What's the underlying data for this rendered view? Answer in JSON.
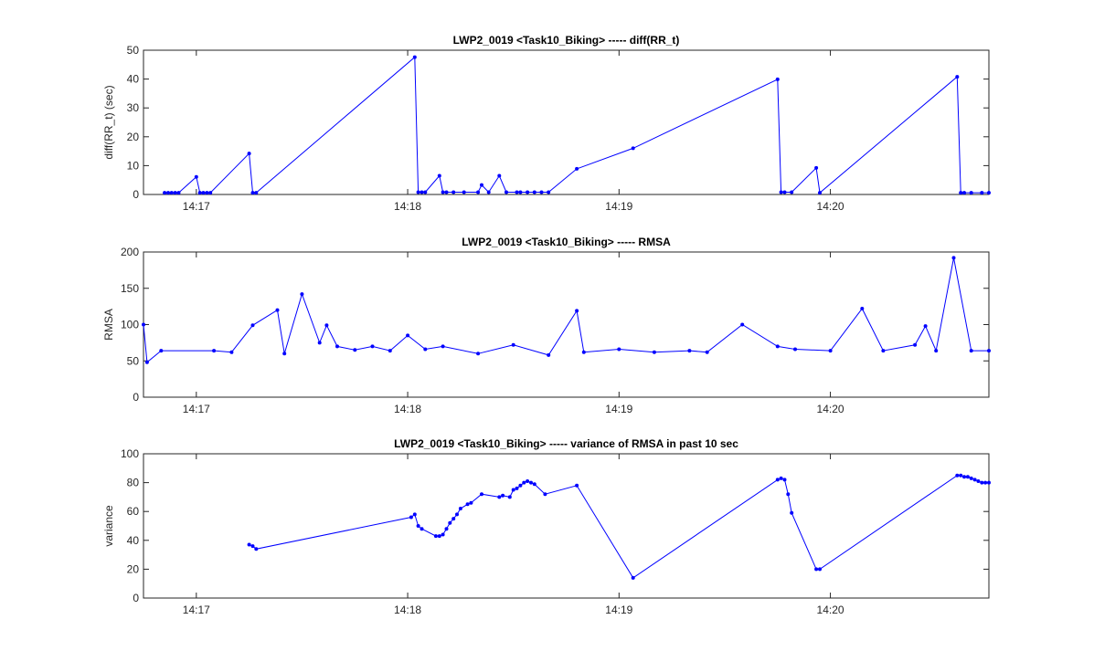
{
  "figure": {
    "background": "#ffffff"
  },
  "chart_data": [
    {
      "type": "line",
      "title": "LWP2_0019 <Task10_Biking> ----- diff(RR_t)",
      "xlabel": "",
      "ylabel": "diff(RR_t) (sec)",
      "x_unit": "time (hh:mm)",
      "xlim": [
        "14:16:45",
        "14:20:45"
      ],
      "ylim": [
        0,
        50
      ],
      "xticks": [
        "14:17",
        "14:18",
        "14:19",
        "14:20"
      ],
      "yticks": [
        0,
        10,
        20,
        30,
        40,
        50
      ],
      "grid": false,
      "line_color": "#0000ff",
      "series": [
        {
          "x": [
            "14:16:51",
            "14:16:52",
            "14:16:53",
            "14:16:54",
            "14:16:55",
            "14:17:00",
            "14:17:01",
            "14:17:02",
            "14:17:03",
            "14:17:04",
            "14:17:15",
            "14:17:16",
            "14:17:17",
            "14:18:02",
            "14:18:03",
            "14:18:04",
            "14:18:05",
            "14:18:09",
            "14:18:10",
            "14:18:11",
            "14:18:13",
            "14:18:16",
            "14:18:20",
            "14:18:21",
            "14:18:23",
            "14:18:26",
            "14:18:28",
            "14:18:31",
            "14:18:32",
            "14:18:34",
            "14:18:36",
            "14:18:38",
            "14:18:40",
            "14:18:48",
            "14:19:04",
            "14:19:45",
            "14:19:46",
            "14:19:47",
            "14:19:49",
            "14:19:56",
            "14:19:57",
            "14:20:36",
            "14:20:37",
            "14:20:38",
            "14:20:40",
            "14:20:43",
            "14:20:45"
          ],
          "y": [
            0.6,
            0.6,
            0.6,
            0.6,
            0.6,
            6.1,
            0.6,
            0.6,
            0.6,
            0.6,
            14.2,
            0.6,
            0.6,
            47.6,
            0.8,
            0.8,
            0.8,
            6.5,
            0.8,
            0.8,
            0.8,
            0.8,
            0.8,
            3.3,
            0.8,
            6.5,
            0.8,
            0.8,
            0.8,
            0.8,
            0.8,
            0.8,
            0.8,
            8.9,
            16.0,
            39.9,
            0.8,
            0.8,
            0.8,
            9.2,
            0.6,
            40.8,
            0.6,
            0.6,
            0.6,
            0.6,
            0.6
          ]
        }
      ]
    },
    {
      "type": "line",
      "title": "LWP2_0019 <Task10_Biking> ----- RMSA",
      "xlabel": "",
      "ylabel": "RMSA",
      "x_unit": "time (hh:mm)",
      "xlim": [
        "14:16:45",
        "14:20:45"
      ],
      "ylim": [
        0,
        200
      ],
      "xticks": [
        "14:17",
        "14:18",
        "14:19",
        "14:20"
      ],
      "yticks": [
        0,
        50,
        100,
        150,
        200
      ],
      "grid": false,
      "line_color": "#0000ff",
      "series": [
        {
          "x": [
            "14:16:45",
            "14:16:46",
            "14:16:50",
            "14:17:05",
            "14:17:10",
            "14:17:16",
            "14:17:23",
            "14:17:25",
            "14:17:30",
            "14:17:35",
            "14:17:37",
            "14:17:40",
            "14:17:45",
            "14:17:50",
            "14:17:55",
            "14:18:00",
            "14:18:05",
            "14:18:10",
            "14:18:20",
            "14:18:30",
            "14:18:40",
            "14:18:48",
            "14:18:50",
            "14:19:00",
            "14:19:10",
            "14:19:20",
            "14:19:25",
            "14:19:35",
            "14:19:45",
            "14:19:50",
            "14:20:00",
            "14:20:09",
            "14:20:15",
            "14:20:24",
            "14:20:27",
            "14:20:30",
            "14:20:35",
            "14:20:40",
            "14:20:45"
          ],
          "y": [
            100,
            48,
            64,
            64,
            62,
            99,
            120,
            60,
            142,
            75,
            99,
            70,
            65,
            70,
            64,
            85,
            66,
            70,
            60,
            72,
            58,
            119,
            62,
            66,
            62,
            64,
            62,
            100,
            70,
            66,
            64,
            122,
            64,
            72,
            98,
            64,
            192,
            64,
            64
          ]
        }
      ]
    },
    {
      "type": "line",
      "title": "LWP2_0019 <Task10_Biking> ----- variance of RMSA in past 10 sec",
      "xlabel": "",
      "ylabel": "variance",
      "x_unit": "time (hh:mm)",
      "xlim": [
        "14:16:45",
        "14:20:45"
      ],
      "ylim": [
        0,
        100
      ],
      "xticks": [
        "14:17",
        "14:18",
        "14:19",
        "14:20"
      ],
      "yticks": [
        0,
        20,
        40,
        60,
        80,
        100
      ],
      "grid": false,
      "line_color": "#0000ff",
      "series": [
        {
          "x": [
            "14:17:15",
            "14:17:16",
            "14:17:17",
            "14:18:01",
            "14:18:02",
            "14:18:03",
            "14:18:04",
            "14:18:08",
            "14:18:09",
            "14:18:10",
            "14:18:11",
            "14:18:12",
            "14:18:13",
            "14:18:14",
            "14:18:15",
            "14:18:17",
            "14:18:18",
            "14:18:21",
            "14:18:26",
            "14:18:27",
            "14:18:29",
            "14:18:30",
            "14:18:31",
            "14:18:32",
            "14:18:33",
            "14:18:34",
            "14:18:35",
            "14:18:36",
            "14:18:39",
            "14:18:48",
            "14:19:04",
            "14:19:45",
            "14:19:46",
            "14:19:47",
            "14:19:48",
            "14:19:49",
            "14:19:56",
            "14:19:57",
            "14:20:36",
            "14:20:37",
            "14:20:38",
            "14:20:39",
            "14:20:40",
            "14:20:41",
            "14:20:42",
            "14:20:43",
            "14:20:44",
            "14:20:45"
          ],
          "y": [
            37,
            36,
            34,
            56,
            58,
            50,
            48,
            43,
            43,
            44,
            48,
            52,
            55,
            58,
            62,
            65,
            66,
            72,
            70,
            71,
            70,
            75,
            76,
            78,
            80,
            81,
            80,
            79,
            72,
            78,
            14,
            82,
            83,
            82,
            72,
            59,
            20,
            20,
            85,
            85,
            84,
            84,
            83,
            82,
            81,
            80,
            80,
            80
          ]
        }
      ]
    }
  ]
}
